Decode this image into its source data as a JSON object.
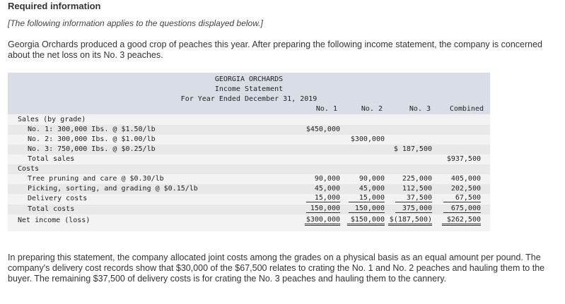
{
  "header": {
    "title": "Required information"
  },
  "note": "[The following information applies to the questions displayed below.]",
  "intro": "Georgia Orchards produced a good crop of peaches this year. After preparing the following income statement, the company is concerned about the net loss on its No. 3 peaches.",
  "statement": {
    "company": "GEORGIA ORCHARDS",
    "name": "Income Statement",
    "period": "For Year Ended December 31, 2019",
    "columns": [
      "No. 1",
      "No. 2",
      "No. 3",
      "Combined"
    ],
    "rows": {
      "sales_heading": "Sales (by grade)",
      "sales_no1": {
        "label": "No. 1: 300,000 Ibs. @ $1.50/lb",
        "c1": "$450,000",
        "c2": "",
        "c3": "",
        "c4": ""
      },
      "sales_no2": {
        "label": "No. 2: 300,000 Ibs. @ $1.00/lb",
        "c1": "",
        "c2": "$300,000",
        "c3": "",
        "c4": ""
      },
      "sales_no3": {
        "label": "No. 3: 750,000 Ibs. @ $0.25/lb",
        "c1": "",
        "c2": "",
        "c3": "$ 187,500",
        "c4": ""
      },
      "total_sales": {
        "label": "Total sales",
        "c1": "",
        "c2": "",
        "c3": "",
        "c4": "$937,500"
      },
      "costs_heading": "Costs",
      "tree": {
        "label": "Tree pruning and care @ $0.30/lb",
        "c1": "90,000",
        "c2": "90,000",
        "c3": "225,000",
        "c4": "405,000"
      },
      "picking": {
        "label": "Picking, sorting, and grading @ $0.15/lb",
        "c1": "45,000",
        "c2": "45,000",
        "c3": "112,500",
        "c4": "202,500"
      },
      "delivery": {
        "label": "Delivery costs",
        "c1": "15,000",
        "c2": "15,000",
        "c3": "37,500",
        "c4": "67,500"
      },
      "total_costs": {
        "label": "Total costs",
        "c1": "150,000",
        "c2": "150,000",
        "c3": "375,000",
        "c4": "675,000"
      },
      "net_income": {
        "label": "Net income (loss)",
        "c1": "$300,000",
        "c2": "$150,000",
        "c3": "$(187,500)",
        "c4": "$262,500"
      }
    }
  },
  "closing": "In preparing this statement, the company allocated joint costs among the grades on a physical basis as an equal amount per pound. The company's delivery cost records show that $30,000 of the $67,500 relates to crating the No. 1 and No. 2 peaches and hauling them to the buyer. The remaining $37,500 of delivery costs is for crating the No. 3 peaches and hauling them to the cannery."
}
